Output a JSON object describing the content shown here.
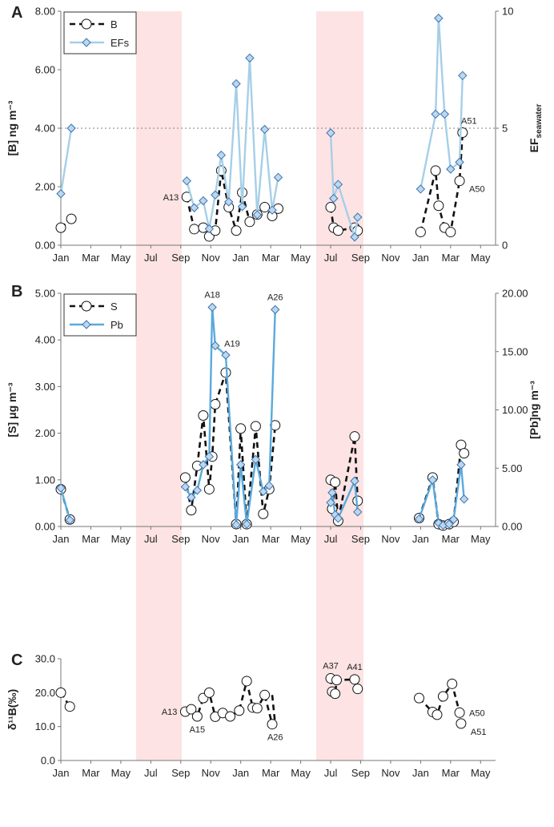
{
  "x_tick_labels": [
    "Jan",
    "Mar",
    "May",
    "Jul",
    "Sep",
    "Nov",
    "Jan",
    "Mar",
    "May",
    "Jul",
    "Sep",
    "Nov",
    "Jan",
    "Mar",
    "May"
  ],
  "colors": {
    "line_dark": "#111111",
    "line_light": "#a6cfe8",
    "line_pb": "#5aa9dc",
    "marker_fill": "#bcd7ee",
    "marker_stroke": "#3b73b0",
    "shade": "#fde3e3",
    "threshold": "#aaaaaa"
  },
  "chart_data": [
    {
      "panel_label": "A",
      "type": "line",
      "ylabel": "[B] ng m⁻³",
      "y2label": "EF",
      "y2label_sub": "seawater",
      "ylim": [
        0,
        8
      ],
      "yticks": [
        "0.00",
        "2.00",
        "4.00",
        "6.00",
        "8.00"
      ],
      "y2lim": [
        0,
        10
      ],
      "y2ticks": [
        "0",
        "5",
        "10"
      ],
      "threshold": 5,
      "legend": [
        "B",
        "EFs"
      ],
      "series": [
        {
          "name": "B",
          "axis": "left",
          "style": "dashed-circle",
          "x": [
            0.0,
            0.35,
            4.2,
            4.45,
            4.75,
            4.95,
            5.15,
            5.35,
            5.6,
            5.85,
            6.05,
            6.3,
            6.55,
            6.8,
            7.05,
            7.25,
            9.0,
            9.1,
            9.25,
            9.8,
            9.9,
            12.0,
            12.5,
            12.6,
            12.8,
            13.0,
            13.3,
            13.4
          ],
          "y": [
            0.6,
            0.9,
            1.65,
            0.55,
            0.6,
            0.3,
            0.5,
            2.55,
            1.3,
            0.5,
            1.8,
            0.8,
            1.05,
            1.3,
            1.0,
            1.25,
            1.3,
            0.6,
            0.5,
            0.6,
            0.5,
            0.45,
            2.55,
            1.35,
            0.6,
            0.45,
            2.2,
            3.85
          ]
        },
        {
          "name": "EFs",
          "axis": "right",
          "style": "light-diamond",
          "x": [
            0.0,
            0.35,
            4.2,
            4.45,
            4.75,
            4.95,
            5.15,
            5.35,
            5.6,
            5.85,
            6.05,
            6.3,
            6.55,
            6.8,
            7.05,
            7.25,
            9.0,
            9.1,
            9.25,
            9.8,
            9.9,
            12.0,
            12.5,
            12.6,
            12.8,
            13.0,
            13.3,
            13.4
          ],
          "y": [
            2.2,
            5.0,
            2.75,
            1.6,
            1.9,
            0.7,
            2.15,
            3.85,
            1.85,
            6.9,
            1.65,
            8.0,
            1.3,
            4.95,
            1.5,
            2.9,
            4.8,
            2.0,
            2.6,
            0.35,
            1.2,
            2.4,
            5.6,
            9.7,
            5.6,
            3.25,
            3.55,
            7.25
          ]
        }
      ],
      "annotations": [
        {
          "text": "A13",
          "x": 4.2,
          "y": 1.65,
          "pos": "left"
        },
        {
          "text": "A51",
          "x": 13.4,
          "y": 3.85,
          "pos": "upright"
        },
        {
          "text": "A50",
          "x": 13.3,
          "y": 2.2,
          "pos": "downright"
        }
      ]
    },
    {
      "panel_label": "B",
      "type": "line",
      "ylabel": "[S] μg m⁻³",
      "y2label": "[Pb]ng m⁻³",
      "ylim": [
        0,
        5
      ],
      "yticks": [
        "0.00",
        "1.00",
        "2.00",
        "3.00",
        "4.00",
        "5.00"
      ],
      "y2lim": [
        0,
        20
      ],
      "y2ticks": [
        "0.00",
        "5.00",
        "10.00",
        "15.00",
        "20.00"
      ],
      "legend": [
        "S",
        "Pb"
      ],
      "series": [
        {
          "name": "S",
          "axis": "left",
          "style": "dashed-circle",
          "x": [
            0.0,
            0.3,
            4.15,
            4.35,
            4.55,
            4.75,
            4.95,
            5.05,
            5.15,
            5.5,
            5.85,
            6.0,
            6.2,
            6.5,
            6.75,
            6.95,
            7.15,
            9.0,
            9.05,
            9.15,
            9.25,
            9.8,
            9.9,
            11.95,
            12.4,
            12.6,
            12.75,
            12.95,
            13.1,
            13.35,
            13.45
          ],
          "y": [
            0.8,
            0.15,
            1.05,
            0.35,
            1.3,
            2.38,
            0.8,
            1.5,
            2.62,
            3.3,
            0.05,
            2.1,
            0.05,
            2.15,
            0.27,
            0.8,
            2.17,
            1.0,
            0.38,
            0.95,
            0.12,
            1.93,
            0.55,
            0.18,
            1.05,
            0.05,
            0.02,
            0.05,
            0.1,
            1.75,
            1.57
          ]
        },
        {
          "name": "Pb",
          "axis": "right",
          "style": "solid-diamond",
          "x": [
            0.0,
            0.3,
            4.15,
            4.35,
            4.55,
            4.75,
            4.95,
            5.05,
            5.15,
            5.5,
            5.85,
            6.0,
            6.2,
            6.5,
            6.75,
            6.95,
            7.15,
            9.0,
            9.05,
            9.15,
            9.25,
            9.8,
            9.9,
            11.95,
            12.4,
            12.6,
            12.75,
            12.95,
            13.1,
            13.35,
            13.45
          ],
          "y": [
            3.3,
            0.55,
            3.4,
            2.5,
            3.1,
            5.3,
            6.0,
            18.8,
            15.5,
            14.7,
            0.15,
            5.3,
            0.2,
            5.75,
            3.0,
            3.5,
            18.6,
            2.05,
            2.9,
            1.0,
            0.7,
            3.9,
            1.25,
            0.65,
            4.0,
            0.3,
            0.1,
            0.2,
            0.6,
            5.3,
            2.35
          ]
        }
      ],
      "annotations": [
        {
          "text": "A18",
          "x": 5.05,
          "y": 4.7,
          "pos": "up"
        },
        {
          "text": "A19",
          "x": 5.5,
          "y": 3.67,
          "pos": "upright"
        },
        {
          "text": "A26",
          "x": 7.15,
          "y": 4.65,
          "pos": "up"
        }
      ]
    },
    {
      "panel_label": "C",
      "type": "line",
      "ylabel": "δ¹¹B(‰)",
      "ylim": [
        0,
        30
      ],
      "yticks": [
        "0.0",
        "10.0",
        "20.0",
        "30.0"
      ],
      "series": [
        {
          "name": "d11B",
          "axis": "left",
          "style": "dashed-circle-segments",
          "segments": [
            {
              "x": [
                0.0,
                0.3
              ],
              "y": [
                20.0,
                15.9
              ]
            },
            {
              "x": [
                4.15,
                4.35,
                4.55,
                4.75,
                4.95,
                5.15,
                5.4,
                5.65,
                5.95,
                6.2,
                6.4,
                6.55,
                6.8,
                7.05
              ],
              "y": [
                14.4,
                15.1,
                13.0,
                18.4,
                20.0,
                12.9,
                14.0,
                13.0,
                14.7,
                23.4,
                15.6,
                15.4,
                19.3,
                10.7
              ]
            },
            {
              "x": [
                7.05,
                7.15
              ],
              "y": [
                19.3,
                10.7
              ]
            },
            {
              "x": [
                9.0,
                9.05,
                9.15,
                9.2,
                9.8,
                9.9
              ],
              "y": [
                24.2,
                20.3,
                19.7,
                23.7,
                23.9,
                21.1
              ]
            },
            {
              "x": [
                11.95,
                12.4,
                12.55,
                12.75,
                13.05,
                13.3,
                13.35
              ],
              "y": [
                18.4,
                14.3,
                13.5,
                18.9,
                22.6,
                14.1,
                10.9
              ]
            }
          ]
        }
      ],
      "annotations": [
        {
          "text": "A13",
          "x": 4.15,
          "y": 14.4,
          "pos": "left"
        },
        {
          "text": "A15",
          "x": 4.55,
          "y": 13.0,
          "pos": "down"
        },
        {
          "text": "A26",
          "x": 7.15,
          "y": 10.7,
          "pos": "down"
        },
        {
          "text": "A37",
          "x": 9.0,
          "y": 24.2,
          "pos": "up"
        },
        {
          "text": "A41",
          "x": 9.8,
          "y": 23.9,
          "pos": "up"
        },
        {
          "text": "A50",
          "x": 13.3,
          "y": 14.1,
          "pos": "right"
        },
        {
          "text": "A51",
          "x": 13.35,
          "y": 10.9,
          "pos": "downright"
        }
      ]
    }
  ]
}
